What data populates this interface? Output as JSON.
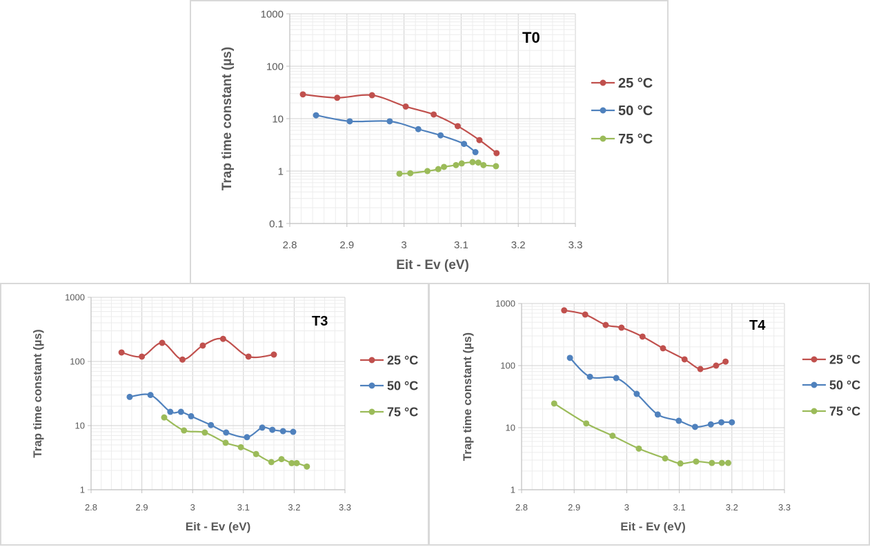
{
  "chart_data": [
    {
      "id": "t0",
      "type": "scatter",
      "title": "T0",
      "xlabel": "Eit - Ev (eV)",
      "ylabel": "Trap time constant (µs)",
      "xlim": [
        2.8,
        3.3
      ],
      "ylim": [
        0.1,
        1000
      ],
      "yscale": "log",
      "xticks": [
        "2.8",
        "2.9",
        "3",
        "3.1",
        "3.2",
        "3.3"
      ],
      "yticks": [
        "0.1",
        "1",
        "10",
        "100",
        "1000"
      ],
      "grid": true,
      "legend": "right",
      "series": [
        {
          "name": "25 °C",
          "color": "#c0504d",
          "x": [
            2.823,
            2.883,
            2.944,
            3.003,
            3.052,
            3.094,
            3.132,
            3.162
          ],
          "y": [
            29,
            25,
            28,
            17,
            12,
            7.2,
            3.9,
            2.2
          ]
        },
        {
          "name": "50 °C",
          "color": "#4f81bd",
          "x": [
            2.846,
            2.905,
            2.975,
            3.025,
            3.064,
            3.105,
            3.125
          ],
          "y": [
            11.6,
            8.9,
            8.9,
            6.3,
            4.8,
            3.3,
            2.3
          ]
        },
        {
          "name": "75 °C",
          "color": "#9bbb59",
          "x": [
            2.992,
            3.011,
            3.041,
            3.06,
            3.07,
            3.091,
            3.101,
            3.12,
            3.13,
            3.139,
            3.161
          ],
          "y": [
            0.89,
            0.91,
            1.0,
            1.09,
            1.2,
            1.3,
            1.4,
            1.48,
            1.45,
            1.3,
            1.24
          ]
        }
      ]
    },
    {
      "id": "t3",
      "type": "scatter",
      "title": "T3",
      "xlabel": "Eit - Ev (eV)",
      "ylabel": "Trap time constant (µs)",
      "xlim": [
        2.8,
        3.3
      ],
      "ylim": [
        1,
        1000
      ],
      "yscale": "log",
      "xticks": [
        "2.8",
        "2.9",
        "3",
        "3.1",
        "3.2",
        "3.3"
      ],
      "yticks": [
        "1",
        "10",
        "100",
        "1000"
      ],
      "grid": true,
      "legend": "right",
      "series": [
        {
          "name": "25 °C",
          "color": "#c0504d",
          "x": [
            2.86,
            2.9,
            2.94,
            2.98,
            3.02,
            3.06,
            3.11,
            3.16
          ],
          "y": [
            138,
            119,
            195,
            107,
            177,
            225,
            119,
            128
          ]
        },
        {
          "name": "50 °C",
          "color": "#4f81bd",
          "x": [
            2.876,
            2.917,
            2.956,
            2.977,
            2.997,
            3.036,
            3.066,
            3.107,
            3.137,
            3.157,
            3.178,
            3.198
          ],
          "y": [
            28,
            30,
            16.4,
            16.4,
            14,
            10.2,
            7.8,
            6.6,
            9.3,
            8.6,
            8.2,
            8.0
          ]
        },
        {
          "name": "75 °C",
          "color": "#9bbb59",
          "x": [
            2.944,
            2.983,
            3.024,
            3.065,
            3.095,
            3.125,
            3.155,
            3.175,
            3.195,
            3.205,
            3.225
          ],
          "y": [
            13.4,
            8.4,
            7.8,
            5.4,
            4.6,
            3.6,
            2.7,
            3.0,
            2.6,
            2.6,
            2.3
          ]
        }
      ]
    },
    {
      "id": "t4",
      "type": "scatter",
      "title": "T4",
      "xlabel": "Eit - Ev (eV)",
      "ylabel": "Trap time constant (µs)",
      "xlim": [
        2.8,
        3.3
      ],
      "ylim": [
        1,
        1000
      ],
      "yscale": "log",
      "xticks": [
        "2.8",
        "2.9",
        "3",
        "3.1",
        "3.2",
        "3.3"
      ],
      "yticks": [
        "1",
        "10",
        "100",
        "1000"
      ],
      "grid": true,
      "legend": "right",
      "series": [
        {
          "name": "25 °C",
          "color": "#c0504d",
          "x": [
            2.881,
            2.921,
            2.96,
            2.99,
            3.03,
            3.069,
            3.11,
            3.14,
            3.17,
            3.188
          ],
          "y": [
            776,
            665,
            451,
            408,
            293,
            190,
            126,
            88,
            100,
            116
          ]
        },
        {
          "name": "50 °C",
          "color": "#4f81bd",
          "x": [
            2.892,
            2.93,
            2.98,
            3.019,
            3.059,
            3.099,
            3.13,
            3.16,
            3.18,
            3.2
          ],
          "y": [
            133,
            66,
            63,
            35,
            16.3,
            12.9,
            10.3,
            11.3,
            12.2,
            12.2
          ]
        },
        {
          "name": "75 °C",
          "color": "#9bbb59",
          "x": [
            2.862,
            2.923,
            2.973,
            3.023,
            3.073,
            3.102,
            3.132,
            3.162,
            3.181,
            3.193
          ],
          "y": [
            24.5,
            11.7,
            7.4,
            4.6,
            3.2,
            2.65,
            2.85,
            2.7,
            2.7,
            2.7
          ]
        }
      ]
    }
  ]
}
